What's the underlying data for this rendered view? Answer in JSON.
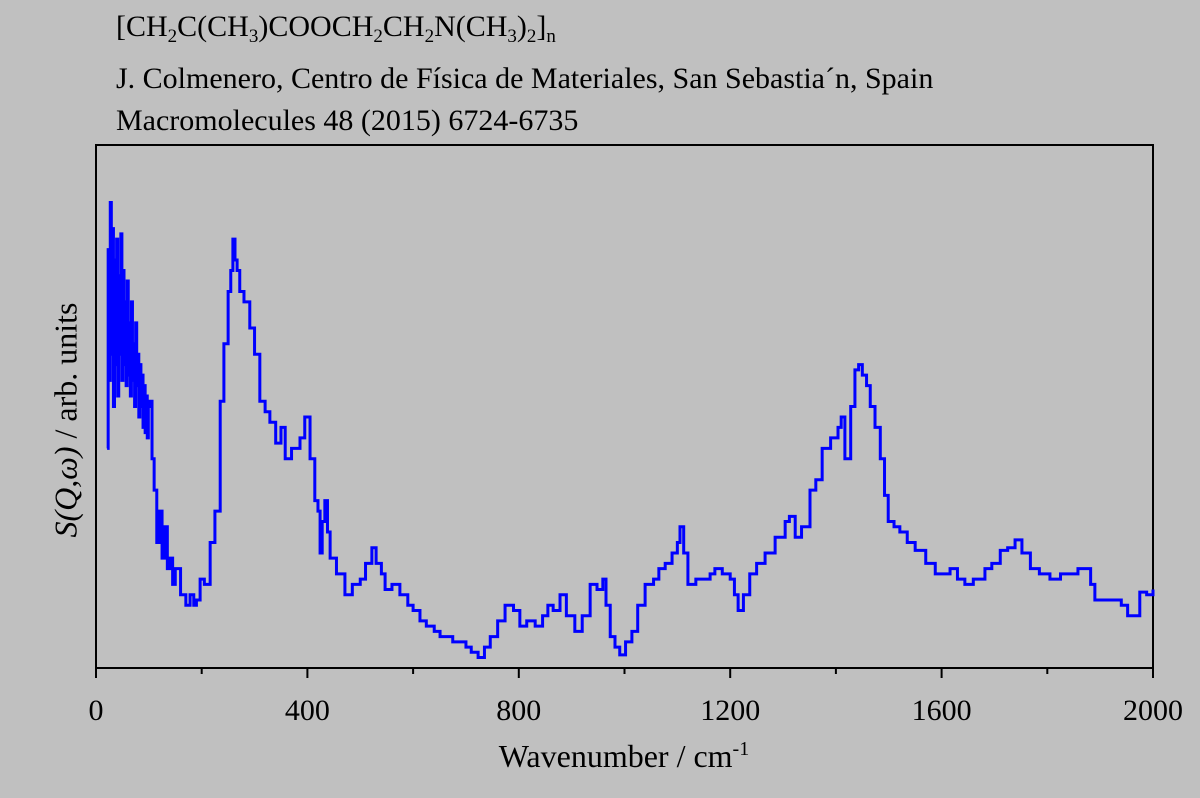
{
  "header": {
    "formula_parts": [
      {
        "t": "[CH",
        "sub": false
      },
      {
        "t": "2",
        "sub": true
      },
      {
        "t": "C(CH",
        "sub": false
      },
      {
        "t": "3",
        "sub": true
      },
      {
        "t": ")COOCH",
        "sub": false
      },
      {
        "t": "2",
        "sub": true
      },
      {
        "t": "CH",
        "sub": false
      },
      {
        "t": "2",
        "sub": true
      },
      {
        "t": "N(CH",
        "sub": false
      },
      {
        "t": "3",
        "sub": true
      },
      {
        "t": ")",
        "sub": false
      },
      {
        "t": "2",
        "sub": true
      },
      {
        "t": "]",
        "sub": false
      },
      {
        "t": "n",
        "sub": true
      }
    ],
    "author": "J. Colmenero, Centro de Física de Materiales, San Sebastia´n, Spain",
    "reference": "Macromolecules 48 (2015) 6724-6735"
  },
  "chart_data": {
    "type": "line",
    "title": "[CH2C(CH3)COOCH2CH2N(CH3)2]n",
    "xlabel": "Wavenumber / cm",
    "xlabel_sup": "-1",
    "ylabel": "S(Q,ω) / arb. units",
    "xlim": [
      0,
      2000
    ],
    "ylim": [
      0,
      100
    ],
    "xticks": [
      0,
      400,
      800,
      1200,
      1600,
      2000
    ],
    "xtick_labels": [
      "0",
      "400",
      "800",
      "1200",
      "1600",
      "2000"
    ],
    "minor_xticks": [
      200,
      600,
      1000,
      1400,
      1800
    ],
    "grid": false,
    "color": "#0000ff",
    "series": [
      {
        "name": "S(Q,ω)",
        "x": [
          21,
          23,
          25,
          27,
          29,
          31,
          33,
          35,
          37,
          39,
          41,
          43,
          45,
          47,
          49,
          51,
          53,
          55,
          57,
          59,
          61,
          63,
          65,
          67,
          69,
          71,
          73,
          75,
          77,
          79,
          81,
          83,
          85,
          87,
          89,
          91,
          93,
          95,
          97,
          99,
          102,
          106,
          110,
          115,
          120,
          125,
          130,
          135,
          140,
          145,
          150,
          160,
          170,
          178,
          185,
          190,
          197,
          205,
          216,
          225,
          235,
          242,
          250,
          255,
          259,
          263,
          267,
          272,
          280,
          291,
          300,
          310,
          320,
          329,
          340,
          350,
          358,
          370,
          386,
          395,
          405,
          414,
          420,
          424,
          428,
          433,
          438,
          443,
          455,
          471,
          485,
          500,
          510,
          522,
          530,
          540,
          547,
          560,
          575,
          590,
          600,
          613,
          625,
          640,
          651,
          665,
          675,
          689,
          700,
          710,
          723,
          735,
          746,
          760,
          774,
          790,
          802,
          815,
          831,
          845,
          855,
          865,
          878,
          890,
          906,
          920,
          935,
          948,
          959,
          965,
          973,
          982,
          991,
          1002,
          1014,
          1025,
          1039,
          1055,
          1065,
          1077,
          1090,
          1100,
          1105,
          1112,
          1120,
          1135,
          1152,
          1162,
          1171,
          1185,
          1200,
          1208,
          1215,
          1225,
          1237,
          1250,
          1266,
          1285,
          1304,
          1312,
          1323,
          1335,
          1351,
          1362,
          1374,
          1390,
          1404,
          1410,
          1417,
          1428,
          1436,
          1443,
          1450,
          1458,
          1465,
          1474,
          1484,
          1492,
          1499,
          1510,
          1521,
          1535,
          1550,
          1570,
          1588,
          1600,
          1616,
          1630,
          1644,
          1660,
          1682,
          1695,
          1711,
          1725,
          1739,
          1752,
          1768,
          1785,
          1805,
          1825,
          1843,
          1858,
          1872,
          1882,
          1890,
          1910,
          1928,
          1940,
          1952,
          1962,
          1975,
          1988,
          2000
        ],
        "y": [
          42,
          80,
          55,
          89,
          60,
          84,
          50,
          78,
          58,
          82,
          52,
          75,
          60,
          83,
          55,
          76,
          58,
          70,
          54,
          74,
          56,
          66,
          52,
          70,
          55,
          62,
          50,
          66,
          54,
          60,
          48,
          58,
          50,
          56,
          46,
          54,
          45,
          52,
          44,
          50,
          51,
          40,
          34,
          24,
          30,
          21,
          27,
          19,
          21,
          16,
          19,
          14,
          12,
          14,
          12,
          13,
          17,
          16,
          24,
          30,
          51,
          62,
          72,
          76,
          82,
          78,
          76,
          72,
          70,
          65,
          60,
          51,
          49,
          47,
          43,
          46,
          40,
          42,
          44,
          48,
          40,
          32,
          30,
          22,
          28,
          32,
          26,
          21,
          18,
          14,
          16,
          17,
          20,
          23,
          20,
          18,
          15,
          16,
          14,
          12,
          11,
          9,
          8,
          7,
          6,
          6,
          5,
          5,
          4,
          3,
          2,
          4,
          6,
          9,
          12,
          11,
          8,
          9,
          8,
          10,
          12,
          11,
          14,
          10,
          7,
          10,
          16,
          15,
          17,
          12,
          6,
          4,
          2.5,
          5,
          7,
          12,
          16,
          17,
          19,
          20,
          22,
          24,
          27,
          22,
          16,
          17,
          17,
          18,
          19,
          18,
          17,
          14,
          11,
          14,
          18,
          20,
          22,
          25,
          28,
          29,
          25,
          27,
          34,
          36,
          42,
          44,
          46,
          48,
          40,
          50,
          57,
          58,
          56,
          54,
          50,
          46,
          40,
          33,
          28,
          27,
          26,
          24,
          22.5,
          20,
          18,
          18,
          19,
          17,
          16,
          17,
          19,
          20,
          22.5,
          23,
          24.5,
          22,
          19,
          18,
          17,
          18,
          18,
          19,
          19,
          16,
          13,
          13,
          13,
          12,
          10,
          10,
          14.5,
          14,
          15
        ]
      }
    ]
  }
}
